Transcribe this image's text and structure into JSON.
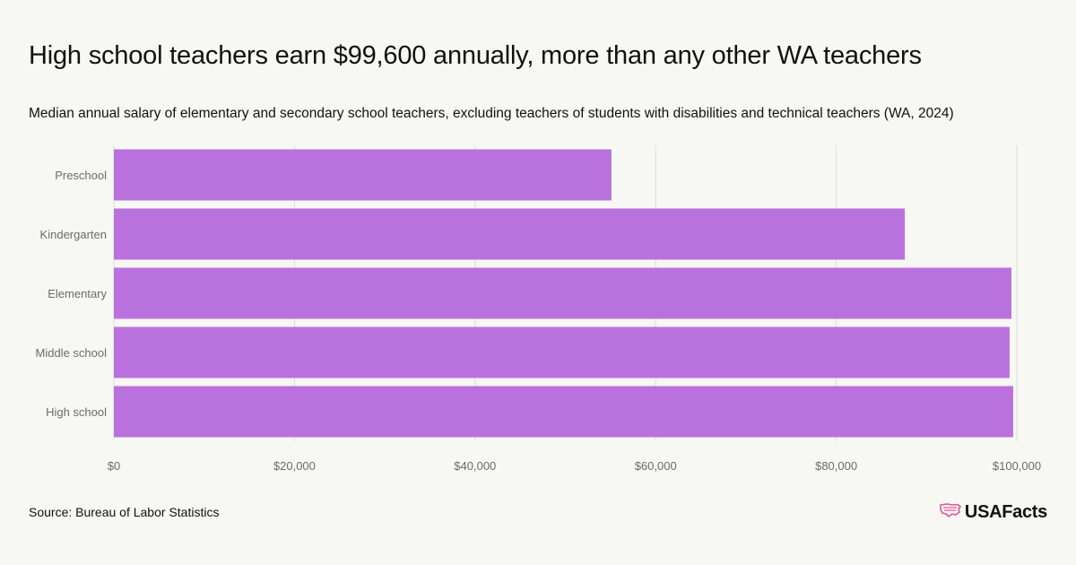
{
  "header": {
    "title": "High school teachers earn $99,600 annually, more than any other WA teachers",
    "subtitle": "Median annual salary of elementary and secondary school teachers, excluding teachers of students with disabilities and technical teachers (WA, 2024)"
  },
  "footer": {
    "source": "Source: Bureau of Labor Statistics",
    "brand": "USAFacts",
    "brand_icon": "usa-map-icon"
  },
  "colors": {
    "bar": "#b972dd",
    "grid": "#dcdcdc",
    "tick_text": "#6b6b6b",
    "background": "#f7f7f3",
    "brand_accent": "#e0559a"
  },
  "chart_data": {
    "type": "bar",
    "orientation": "horizontal",
    "categories": [
      "Preschool",
      "Kindergarten",
      "Elementary",
      "Middle school",
      "High school"
    ],
    "values": [
      55100,
      87600,
      99400,
      99200,
      99600
    ],
    "xlim": [
      0,
      100000
    ],
    "xticks": [
      0,
      20000,
      40000,
      60000,
      80000,
      100000
    ],
    "xtick_labels": [
      "$0",
      "$20,000",
      "$40,000",
      "$60,000",
      "$80,000",
      "$100,000"
    ],
    "grid": true,
    "legend": "none"
  }
}
